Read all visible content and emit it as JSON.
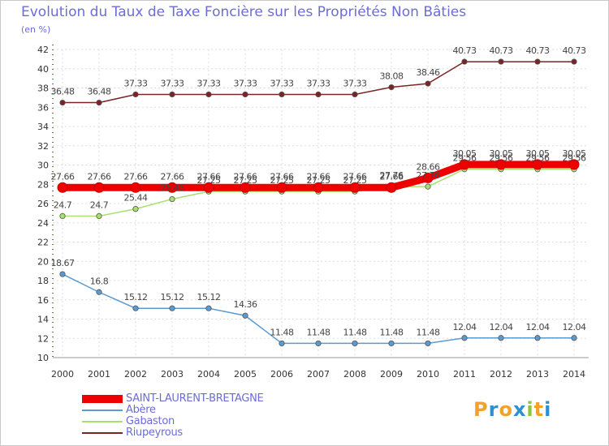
{
  "title": "Evolution du Taux de Taxe Foncière sur les Propriétés Non Bâties",
  "unit": "(en %)",
  "logo": {
    "text": "Proxiti",
    "letters": [
      "P",
      "r",
      "o",
      "x",
      "i",
      "t",
      "i"
    ],
    "colors": [
      "#f2a12b",
      "#2f8fd0",
      "#f2a12b",
      "#2f8fd0",
      "#8cc63f",
      "#f2a12b",
      "#2f8fd0"
    ]
  },
  "chart_data": {
    "type": "line",
    "title": "Evolution du Taux de Taxe Foncière sur les Propriétés Non Bâties",
    "ylabel": "(en %)",
    "xlabel": "",
    "ylim": [
      10,
      42
    ],
    "yticks": [
      10,
      12,
      14,
      16,
      18,
      20,
      22,
      24,
      26,
      28,
      30,
      32,
      34,
      36,
      38,
      40,
      42
    ],
    "categories": [
      "2000",
      "2001",
      "2002",
      "2003",
      "2004",
      "2005",
      "2006",
      "2007",
      "2008",
      "2009",
      "2010",
      "2011",
      "2012",
      "2013",
      "2014"
    ],
    "grid": true,
    "series": [
      {
        "name": "SAINT-LAURENT-BRETAGNE",
        "color": "#ee0000",
        "thick": true,
        "values": [
          27.66,
          27.66,
          27.66,
          27.66,
          27.66,
          27.66,
          27.66,
          27.66,
          27.66,
          27.66,
          28.66,
          30.05,
          30.05,
          30.05,
          30.05
        ],
        "labels": [
          "27.66",
          "27.66",
          "27.66",
          "27.66",
          "27.66",
          "27.66",
          "27.66",
          "27.66",
          "27.66",
          "27.66",
          "28.66",
          "30.05",
          "30.05",
          "30.05",
          "30.05"
        ]
      },
      {
        "name": "Abère",
        "color": "#5c9ad2",
        "thick": false,
        "values": [
          18.67,
          16.8,
          15.12,
          15.12,
          15.12,
          14.36,
          11.48,
          11.48,
          11.48,
          11.48,
          11.48,
          12.04,
          12.04,
          12.04,
          12.04
        ],
        "labels": [
          "18.67",
          "16.8",
          "15.12",
          "15.12",
          "15.12",
          "14.36",
          "11.48",
          "11.48",
          "11.48",
          "11.48",
          "11.48",
          "12.04",
          "12.04",
          "12.04",
          "12.04"
        ]
      },
      {
        "name": "Gabaston",
        "color": "#a8e070",
        "thick": false,
        "values": [
          24.7,
          24.7,
          25.44,
          26.46,
          27.25,
          27.25,
          27.25,
          27.25,
          27.25,
          27.76,
          27.76,
          29.56,
          29.56,
          29.56,
          29.56
        ],
        "labels": [
          "24.7",
          "24.7",
          "25.44",
          "26.46",
          "27.25",
          "27.25",
          "27.25",
          "27.25",
          "27.25",
          "27.76",
          "27.76",
          "29.56",
          "29.56",
          "29.56",
          "29.56"
        ]
      },
      {
        "name": "Riupeyrous",
        "color": "#7a2525",
        "thick": false,
        "values": [
          36.48,
          36.48,
          37.33,
          37.33,
          37.33,
          37.33,
          37.33,
          37.33,
          37.33,
          38.08,
          38.46,
          40.73,
          40.73,
          40.73,
          40.73
        ],
        "labels": [
          "36.48",
          "36.48",
          "37.33",
          "37.33",
          "37.33",
          "37.33",
          "37.33",
          "37.33",
          "37.33",
          "38.08",
          "38.46",
          "40.73",
          "40.73",
          "40.73",
          "40.73"
        ]
      }
    ]
  }
}
